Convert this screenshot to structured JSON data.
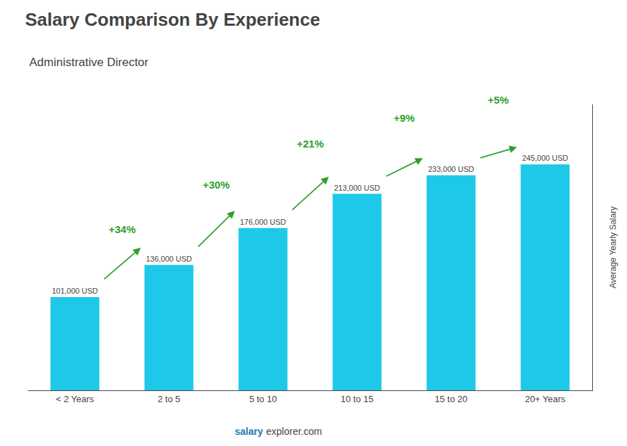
{
  "chart_data": {
    "type": "bar",
    "title": "Salary Comparison By Experience",
    "subtitle": "Administrative Director",
    "ylabel": "Average Yearly Salary",
    "categories": [
      "< 2 Years",
      "2 to 5",
      "5 to 10",
      "10 to 15",
      "15 to 20",
      "20+ Years"
    ],
    "values": [
      101000,
      136000,
      176000,
      213000,
      233000,
      245000
    ],
    "value_labels": [
      "101,000 USD",
      "136,000 USD",
      "176,000 USD",
      "213,000 USD",
      "233,000 USD",
      "245,000 USD"
    ],
    "data_labels": true,
    "color": "#1EC8E8",
    "ylim": [
      0,
      310000
    ],
    "grid": false,
    "tick_labels": "x",
    "annotations": [
      "+34%",
      "+30%",
      "+21%",
      "+9%",
      "+5%"
    ],
    "watermark": [
      "salary",
      "explorer.com"
    ]
  }
}
